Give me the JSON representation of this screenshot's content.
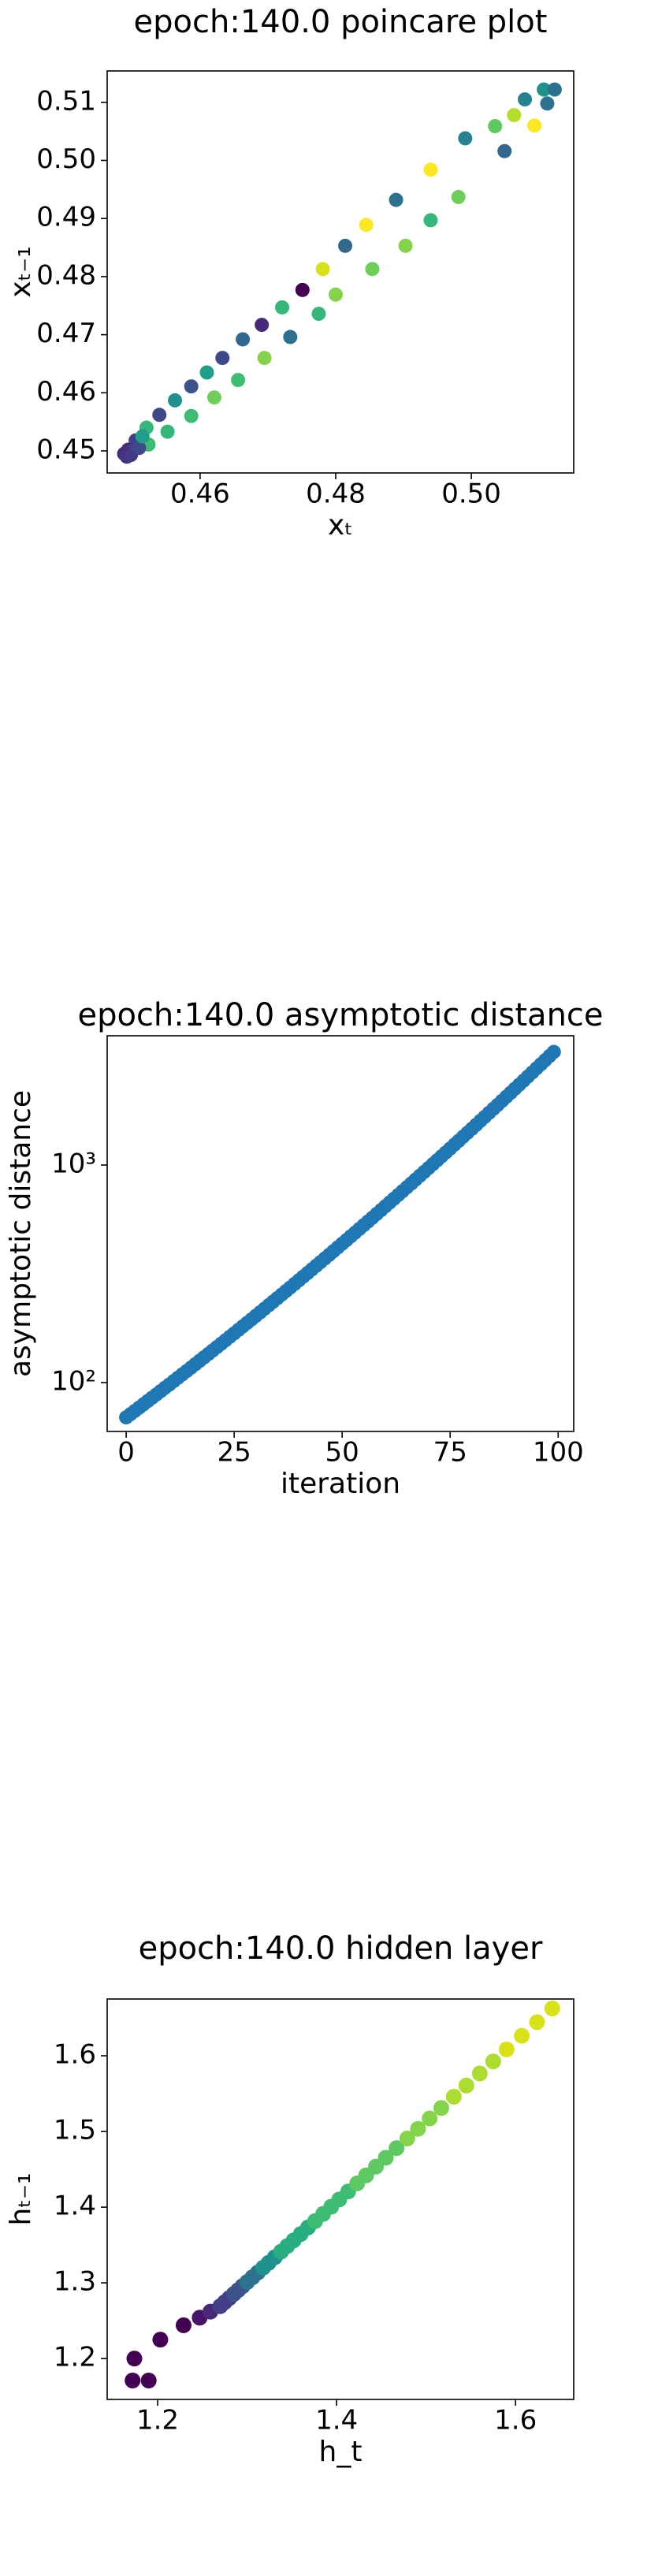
{
  "chart_data": [
    {
      "type": "scatter",
      "title": "epoch:140.0 poincare plot",
      "xlabel": "xₜ",
      "ylabel": "xₜ₋₁",
      "xlim": [
        0.4463,
        0.5151
      ],
      "ylim": [
        0.4462,
        0.5154
      ],
      "xticks": [
        0.46,
        0.48,
        {
          "value": 0.5,
          "label": "0.50"
        }
      ],
      "yticks": [
        0.45,
        0.46,
        0.47,
        0.48,
        0.49,
        {
          "value": 0.5,
          "label": "0.50"
        },
        0.51
      ],
      "x": [
        0.5107,
        0.5123,
        0.5079,
        0.5063,
        0.5035,
        0.4991,
        0.494,
        0.4889,
        0.4845,
        0.4814,
        0.4781,
        0.4751,
        0.4721,
        0.4691,
        0.4663,
        0.4633,
        0.461,
        0.4587,
        0.4563,
        0.454,
        0.4521,
        0.4505,
        0.4494,
        0.5112,
        0.5093,
        0.5049,
        0.4981,
        0.494,
        0.4903,
        0.4854,
        0.48,
        0.4775,
        0.4733,
        0.4695,
        0.4656,
        0.4621,
        0.4587,
        0.4552,
        0.4524,
        0.45,
        0.4488,
        0.4492,
        0.4498,
        0.451,
        0.4515
      ],
      "y": [
        0.5122,
        0.5122,
        0.5105,
        0.5078,
        0.5059,
        0.5038,
        0.4984,
        0.4932,
        0.4889,
        0.4853,
        0.4813,
        0.4777,
        0.4747,
        0.4717,
        0.4692,
        0.466,
        0.4635,
        0.4611,
        0.4587,
        0.4562,
        0.454,
        0.4518,
        0.4502,
        0.5098,
        0.506,
        0.5016,
        0.4937,
        0.4897,
        0.4853,
        0.4813,
        0.4769,
        0.4736,
        0.4696,
        0.466,
        0.4622,
        0.4592,
        0.456,
        0.4533,
        0.4511,
        0.45,
        0.4495,
        0.449,
        0.4493,
        0.4505,
        0.4525
      ],
      "colors": [
        "#21918c",
        "#2c728e",
        "#26828e",
        "#b5de2b",
        "#5ec962",
        "#26828e",
        "#fde725",
        "#2c728e",
        "#fde725",
        "#31688e",
        "#d8e219",
        "#440154",
        "#35b779",
        "#482878",
        "#31688e",
        "#3e4989",
        "#1f9e89",
        "#3b528b",
        "#21918c",
        "#3e4989",
        "#35b779",
        "#433e85",
        "#482878",
        "#2c728e",
        "#fde725",
        "#31688e",
        "#6ece58",
        "#35b779",
        "#84d44b",
        "#6ece58",
        "#84d44b",
        "#35b779",
        "#2c728e",
        "#84d44b",
        "#3fbc73",
        "#6ece58",
        "#3fbc73",
        "#35b779",
        "#3fbc73",
        "#433e85",
        "#472c7a",
        "#46327e",
        "#443983",
        "#3e4989",
        "#1f9e89"
      ]
    },
    {
      "type": "scatter",
      "title": "epoch:140.0 asymptotic distance",
      "xlabel": "iteration",
      "ylabel": "asymptotic distance",
      "log_y": true,
      "xlim": [
        -4.4,
        103.6
      ],
      "ylim": [
        59.6,
        3930
      ],
      "xticks": [
        0,
        25,
        50,
        75,
        100
      ],
      "yticks": [
        {
          "value": 100,
          "label": "10²"
        },
        {
          "value": 1000,
          "label": "10³"
        }
      ],
      "color": "#1f77b4",
      "x": [
        0,
        1,
        2,
        3,
        4,
        5,
        6,
        7,
        8,
        9,
        10,
        11,
        12,
        13,
        14,
        15,
        16,
        17,
        18,
        19,
        20,
        21,
        22,
        23,
        24,
        25,
        26,
        27,
        28,
        29,
        30,
        31,
        32,
        33,
        34,
        35,
        36,
        37,
        38,
        39,
        40,
        41,
        42,
        43,
        44,
        45,
        46,
        47,
        48,
        49,
        50,
        51,
        52,
        53,
        54,
        55,
        56,
        57,
        58,
        59,
        60,
        61,
        62,
        63,
        64,
        65,
        66,
        67,
        68,
        69,
        70,
        71,
        72,
        73,
        74,
        75,
        76,
        77,
        78,
        79,
        80,
        81,
        82,
        83,
        84,
        85,
        86,
        87,
        88,
        89,
        90,
        91,
        92,
        93,
        94,
        95,
        96,
        97,
        98,
        99
      ],
      "y": [
        69.2,
        71.6,
        74.1,
        76.7,
        79.4,
        82.3,
        85.2,
        88.2,
        91.4,
        94.7,
        98.0,
        101.6,
        105.3,
        109.1,
        113.0,
        117.1,
        121.4,
        125.9,
        130.5,
        135.3,
        140.3,
        145.5,
        150.9,
        156.5,
        162.4,
        168.4,
        174.7,
        181.3,
        188.1,
        195.2,
        202.6,
        210.4,
        218.4,
        226.8,
        235.4,
        244.5,
        253.9,
        263.7,
        273.8,
        284.4,
        295.5,
        307.0,
        319.0,
        331.5,
        344.5,
        358.1,
        372.2,
        386.9,
        402.3,
        418.3,
        434.9,
        452.2,
        470.4,
        489.2,
        508.8,
        529.4,
        550.7,
        573.0,
        596.3,
        620.5,
        646.3,
        672.7,
        700.3,
        729.1,
        759.2,
        790.6,
        823.1,
        857.8,
        893.4,
        930.5,
        969.3,
        1010,
        1052,
        1097,
        1143,
        1191,
        1242,
        1294,
        1350,
        1407,
        1467,
        1530,
        1597,
        1665,
        1738,
        1813,
        1891,
        1974,
        2060,
        2149,
        2244,
        2342,
        2445,
        2553,
        2666,
        2784,
        2907,
        3036,
        3171,
        3312
      ]
    },
    {
      "type": "scatter",
      "title": "epoch:140.0 hidden layer",
      "xlabel": "h_t",
      "ylabel": "hₜ₋₁",
      "xlim": [
        1.1436,
        1.665
      ],
      "ylim": [
        1.146,
        1.675
      ],
      "xticks": [
        1.2,
        1.4,
        1.6
      ],
      "yticks": [
        1.2,
        1.3,
        1.4,
        1.5,
        1.6
      ],
      "x": [
        1.172,
        1.174,
        1.19,
        1.203,
        1.229,
        1.247,
        1.259,
        1.27,
        1.275,
        1.28,
        1.285,
        1.29,
        1.295,
        1.3,
        1.306,
        1.312,
        1.318,
        1.324,
        1.331,
        1.338,
        1.345,
        1.352,
        1.36,
        1.368,
        1.376,
        1.385,
        1.394,
        1.403,
        1.413,
        1.423,
        1.433,
        1.444,
        1.455,
        1.467,
        1.479,
        1.491,
        1.504,
        1.517,
        1.531,
        1.545,
        1.56,
        1.575,
        1.59,
        1.607,
        1.624,
        1.641
      ],
      "y": [
        1.171,
        1.2,
        1.171,
        1.225,
        1.244,
        1.254,
        1.262,
        1.2692,
        1.2745,
        1.2798,
        1.2851,
        1.2904,
        1.2957,
        1.301,
        1.3074,
        1.3137,
        1.3201,
        1.3264,
        1.3339,
        1.3413,
        1.3487,
        1.3561,
        1.3646,
        1.3731,
        1.3816,
        1.3911,
        1.4006,
        1.4102,
        1.4208,
        1.4314,
        1.442,
        1.4536,
        1.4653,
        1.478,
        1.4907,
        1.5035,
        1.5172,
        1.531,
        1.5459,
        1.5607,
        1.5766,
        1.5925,
        1.6084,
        1.6264,
        1.6444,
        1.6625
      ],
      "colors": [
        "#440154",
        "#440154",
        "#440154",
        "#440154",
        "#440154",
        "#481467",
        "#482878",
        "#433e85",
        "#433e85",
        "#433e85",
        "#3b528b",
        "#3b528b",
        "#3b528b",
        "#2c728e",
        "#2c728e",
        "#2c728e",
        "#21918c",
        "#21918c",
        "#21918c",
        "#28ae80",
        "#28ae80",
        "#28ae80",
        "#28ae80",
        "#28ae80",
        "#3fbc73",
        "#3fbc73",
        "#3fbc73",
        "#3fbc73",
        "#3fbc73",
        "#5ec962",
        "#5ec962",
        "#5ec962",
        "#5ec962",
        "#5ec962",
        "#84d44b",
        "#84d44b",
        "#84d44b",
        "#84d44b",
        "#addc30",
        "#addc30",
        "#addc30",
        "#addc30",
        "#d8e219",
        "#d8e219",
        "#d8e219",
        "#d8e219"
      ]
    }
  ]
}
